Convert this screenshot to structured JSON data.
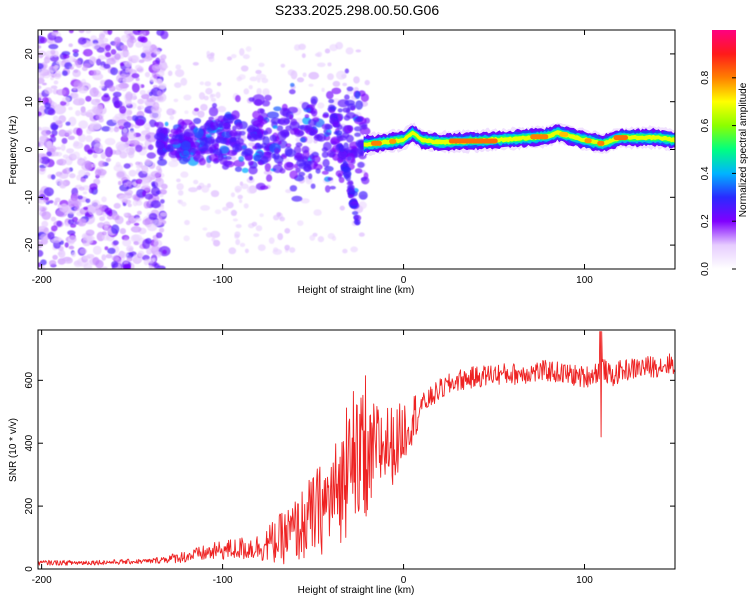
{
  "chart_data": [
    {
      "type": "heatmap",
      "title": "S233.2025.298.00.50.G06",
      "xlabel": "Height of straight line (km)",
      "ylabel": "Frequency (Hz)",
      "xlim": [
        -202,
        150
      ],
      "ylim": [
        -25,
        25
      ],
      "xticks": [
        -200,
        -100,
        0,
        100
      ],
      "yticks": [
        -20,
        -10,
        0,
        10,
        20
      ],
      "ridge": {
        "x": [
          -22,
          -10,
          0,
          5,
          10,
          20,
          40,
          60,
          80,
          85,
          90,
          100,
          110,
          120,
          140,
          150
        ],
        "y": [
          1.0,
          1.5,
          2.0,
          3.5,
          2.0,
          1.5,
          1.8,
          2.2,
          2.8,
          3.5,
          3.0,
          2.0,
          1.2,
          2.5,
          2.5,
          2.0
        ]
      },
      "colorbar": {
        "label": "Normalized spectral amplitude",
        "range": [
          0,
          1
        ],
        "ticks": [
          "0.0",
          "0.2",
          "0.4",
          "0.6",
          "0.8"
        ],
        "colors": [
          "#ffffff",
          "#e6ccff",
          "#8000ff",
          "#2a2aff",
          "#00b4ff",
          "#00ff80",
          "#8cff00",
          "#ffff00",
          "#ff8000",
          "#ff1a1a",
          "#ff0080"
        ]
      }
    },
    {
      "type": "line",
      "xlabel": "Height of straight line (km)",
      "ylabel": "SNR (10 * v/v)",
      "xlim": [
        -202,
        150
      ],
      "ylim": [
        0,
        760
      ],
      "xticks": [
        -200,
        -100,
        0,
        100
      ],
      "yticks": [
        0,
        200,
        400,
        600
      ],
      "series": [
        {
          "name": "SNR",
          "color": "#ee2222",
          "x": [
            -202,
            -180,
            -160,
            -140,
            -120,
            -100,
            -80,
            -70,
            -60,
            -50,
            -40,
            -30,
            -25,
            -20,
            -15,
            -10,
            -5,
            0,
            10,
            20,
            30,
            40,
            50,
            60,
            80,
            90,
            100,
            105,
            110,
            115,
            120,
            130,
            140,
            150
          ],
          "y": [
            20,
            20,
            22,
            25,
            40,
            60,
            70,
            90,
            120,
            170,
            220,
            300,
            340,
            330,
            380,
            400,
            390,
            440,
            520,
            570,
            600,
            610,
            620,
            620,
            630,
            620,
            610,
            620,
            640,
            610,
            630,
            640,
            645,
            655
          ]
        }
      ]
    }
  ]
}
